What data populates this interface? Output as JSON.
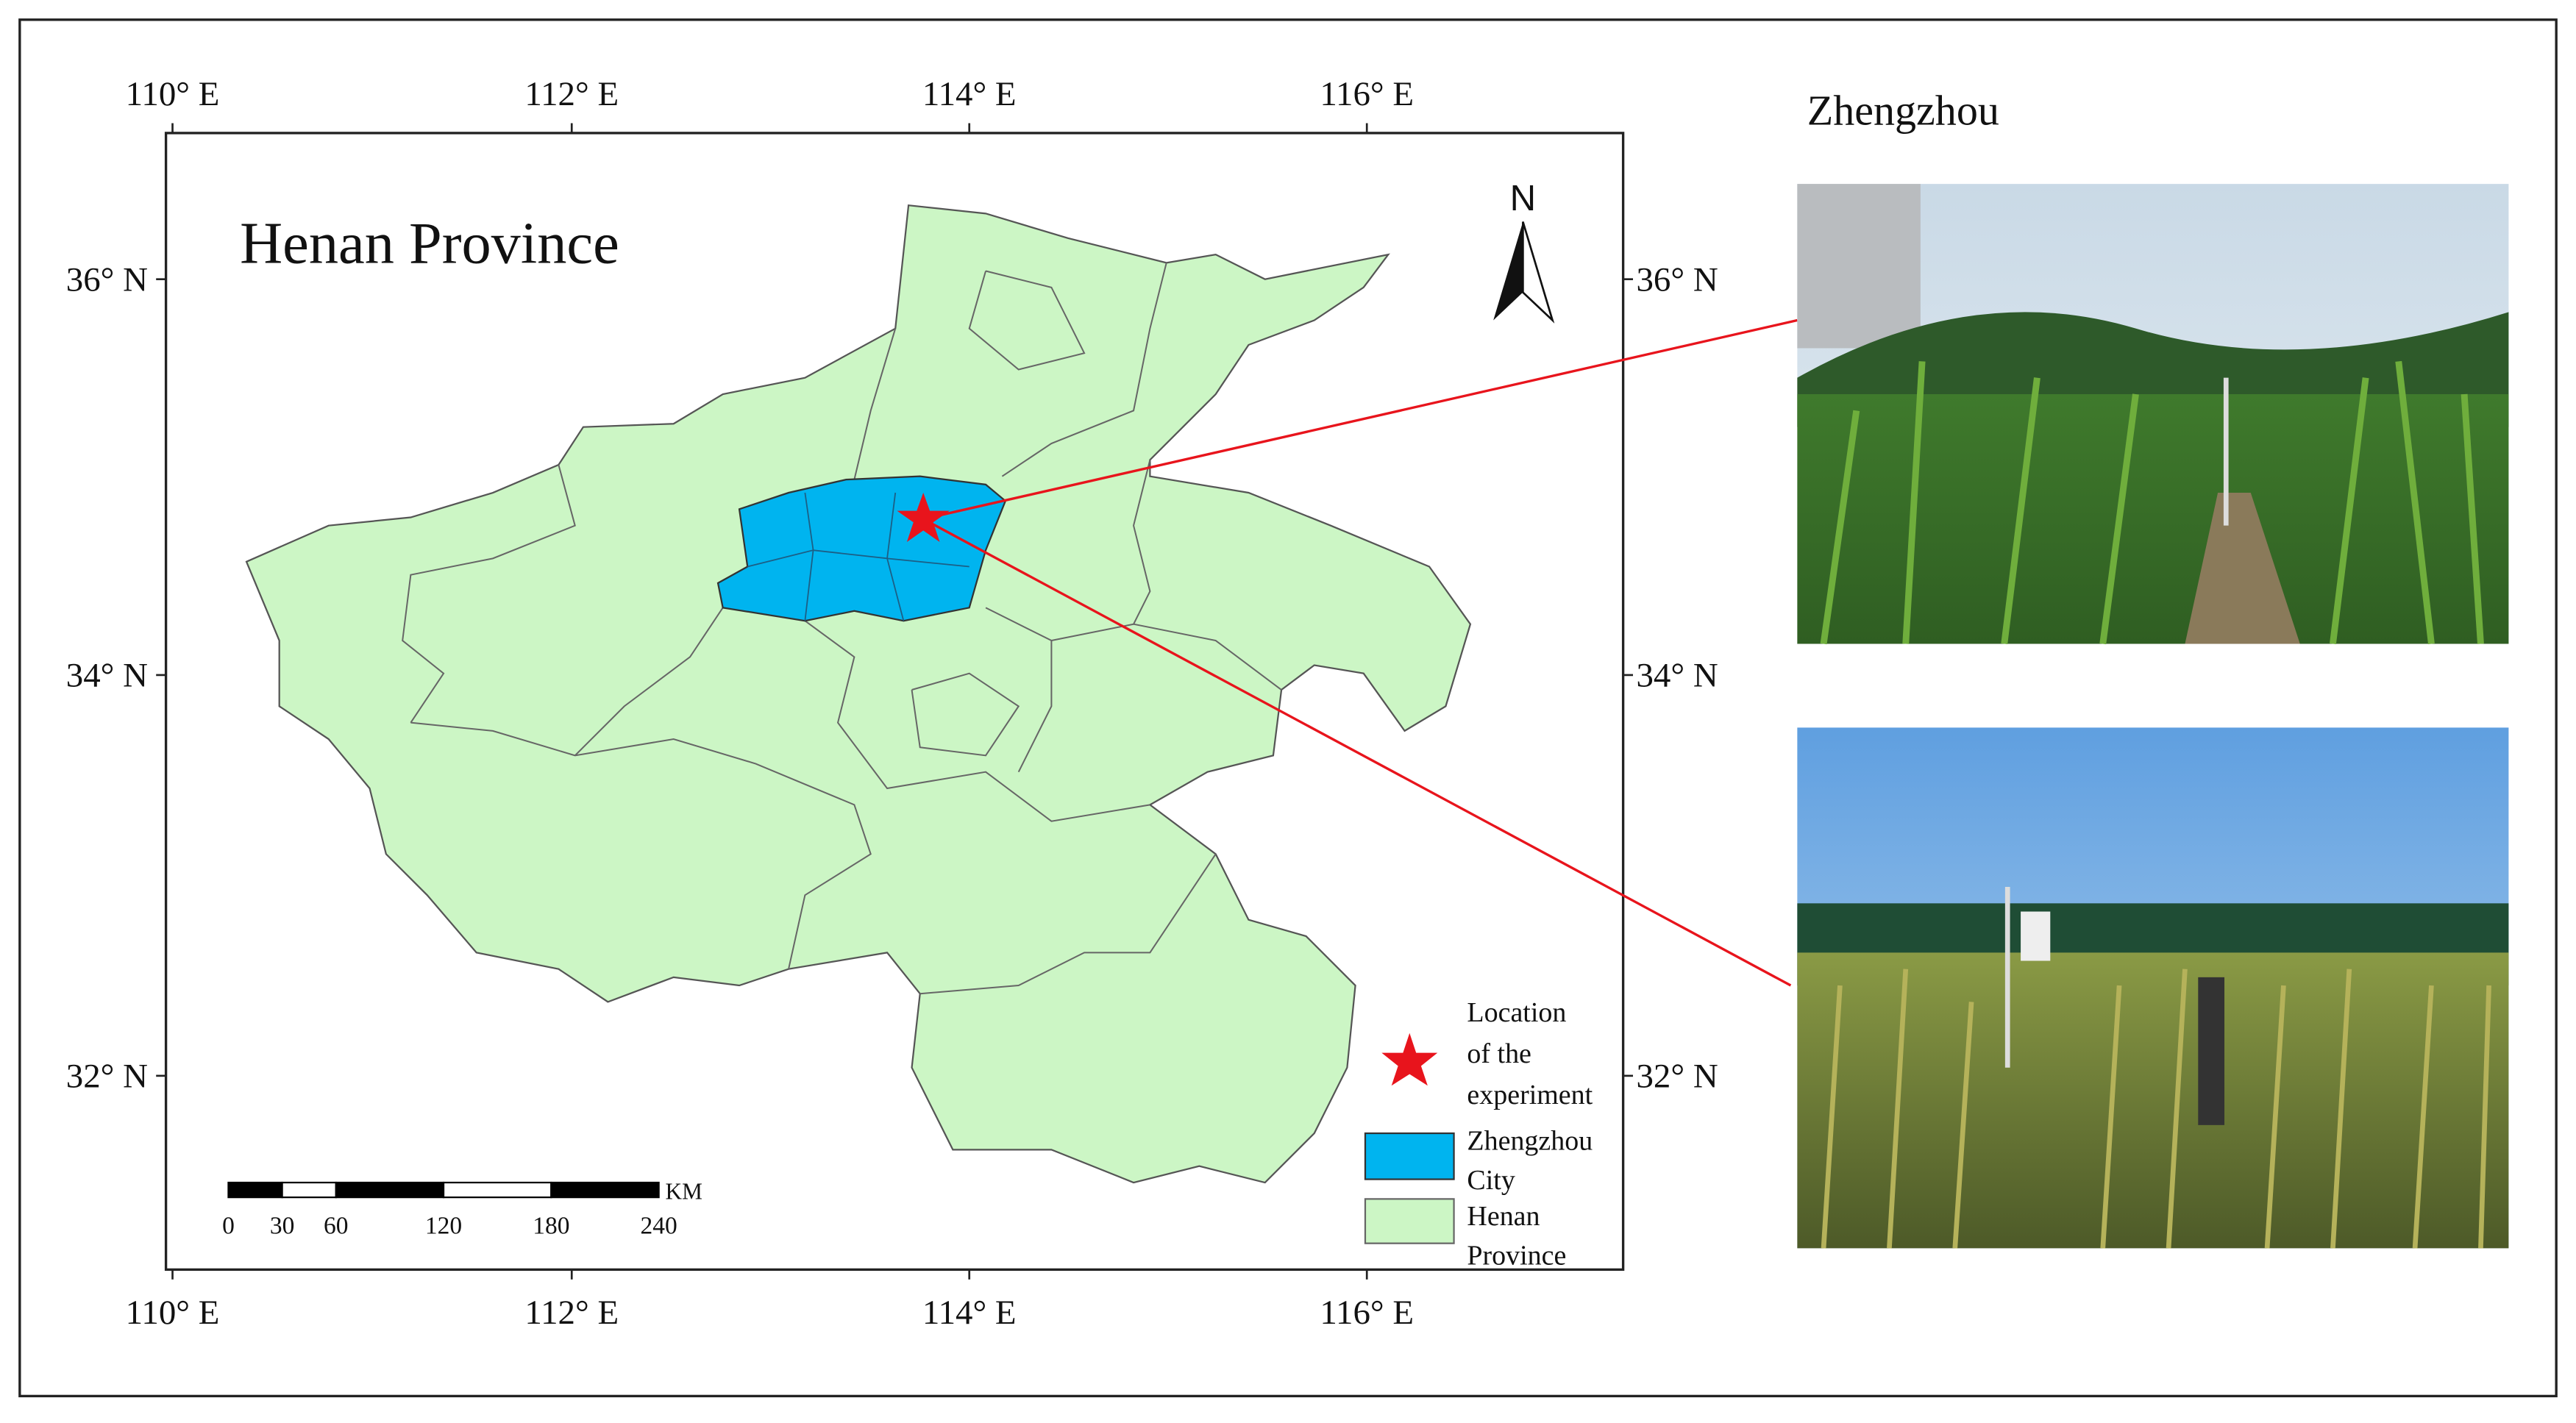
{
  "map": {
    "title": "Henan Province",
    "north_label": "N",
    "top_lon_labels": [
      "110° E",
      "112° E",
      "114° E",
      "116° E"
    ],
    "bottom_lon_labels": [
      "110° E",
      "112° E",
      "114° E",
      "116° E"
    ],
    "left_lat_labels": [
      "36° N",
      "34° N",
      "32° N"
    ],
    "right_lat_labels": [
      "36° N",
      "34° N",
      "32° N"
    ],
    "scale_bar": {
      "unit": "KM",
      "ticks": [
        0,
        30,
        60,
        120,
        180,
        240
      ]
    },
    "legend": [
      {
        "label_lines": [
          "Location",
          "of the",
          "experiment"
        ]
      },
      {
        "label_lines": [
          "Zhengzhou",
          "City"
        ]
      },
      {
        "label_lines": [
          "Henan",
          "Province"
        ]
      }
    ]
  },
  "photos": {
    "title": "Zhengzhou"
  }
}
